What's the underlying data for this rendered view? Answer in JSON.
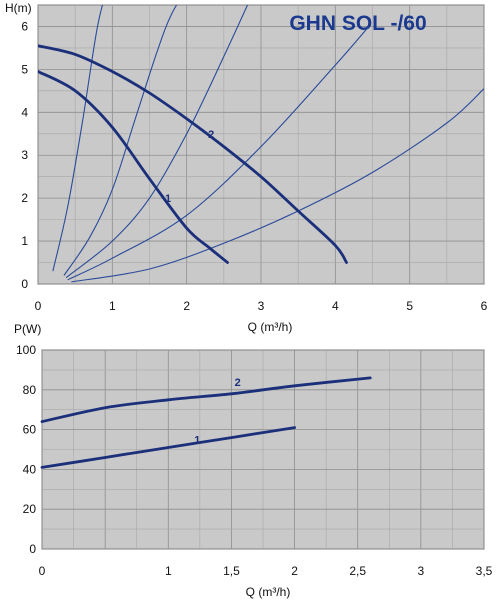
{
  "chart_data": [
    {
      "type": "line",
      "title": "GHN SOL -/60",
      "xlabel": "Q (m³/h)",
      "ylabel": "H(m)",
      "xlim": [
        0,
        6
      ],
      "ylim": [
        0,
        6.5
      ],
      "x_ticks": [
        "0",
        "1",
        "2",
        "3",
        "4",
        "5",
        "6"
      ],
      "y_ticks": [
        "0",
        "1",
        "2",
        "3",
        "4",
        "5",
        "6"
      ],
      "grid": true,
      "series": [
        {
          "name": "1",
          "x": [
            0,
            0.5,
            1.0,
            1.5,
            2.0,
            2.3,
            2.55
          ],
          "y": [
            4.95,
            4.5,
            3.65,
            2.45,
            1.3,
            0.85,
            0.5
          ]
        },
        {
          "name": "2",
          "x": [
            0,
            0.5,
            1.0,
            1.5,
            2.0,
            2.5,
            3.0,
            3.5,
            4.0,
            4.15
          ],
          "y": [
            5.55,
            5.35,
            4.95,
            4.45,
            3.85,
            3.2,
            2.5,
            1.7,
            0.9,
            0.5
          ]
        }
      ],
      "system_curves": [
        {
          "x": [
            0.2,
            0.4,
            0.6,
            0.8,
            0.95
          ],
          "y": [
            0.3,
            1.8,
            3.8,
            6.0,
            7.0
          ]
        },
        {
          "x": [
            0.35,
            0.7,
            1.0,
            1.3,
            1.6,
            1.8,
            2.05
          ],
          "y": [
            0.2,
            1.1,
            2.2,
            3.8,
            5.4,
            6.3,
            7.0
          ]
        },
        {
          "x": [
            0.38,
            1.0,
            1.5,
            2.0,
            2.5,
            2.95
          ],
          "y": [
            0.15,
            1.0,
            2.0,
            3.5,
            5.3,
            7.0
          ]
        },
        {
          "x": [
            0.4,
            1.0,
            2.0,
            3.0,
            4.0,
            4.45
          ],
          "y": [
            0.1,
            0.6,
            1.6,
            3.2,
            5.1,
            6.0
          ]
        },
        {
          "x": [
            0.45,
            1.5,
            2.5,
            3.5,
            4.5,
            5.5,
            6.0
          ],
          "y": [
            0.05,
            0.35,
            0.95,
            1.7,
            2.6,
            3.75,
            4.55
          ]
        }
      ]
    },
    {
      "type": "line",
      "title": "",
      "xlabel": "Q (m³/h)",
      "ylabel": "P(W)",
      "xlim": [
        0,
        3.5
      ],
      "ylim": [
        0,
        100
      ],
      "x_ticks": [
        "0",
        "1",
        "1,5",
        "2",
        "2,5",
        "3",
        "3,5"
      ],
      "x_tick_values": [
        0,
        0.5,
        1,
        1.5,
        2,
        2.5,
        3,
        3.5
      ],
      "x_tick_labels_all": [
        "0",
        "",
        "1",
        "1,5",
        "2",
        "2,5",
        "3",
        "3,5"
      ],
      "y_ticks": [
        "0",
        "20",
        "40",
        "60",
        "80",
        "100"
      ],
      "grid": true,
      "series": [
        {
          "name": "1",
          "x": [
            0,
            0.5,
            1.0,
            1.5,
            2.0
          ],
          "y": [
            41,
            46,
            51,
            56,
            61
          ]
        },
        {
          "name": "2",
          "x": [
            0,
            0.5,
            1.0,
            1.5,
            2.0,
            2.6
          ],
          "y": [
            64,
            71,
            75,
            78,
            82,
            86
          ]
        }
      ]
    }
  ]
}
